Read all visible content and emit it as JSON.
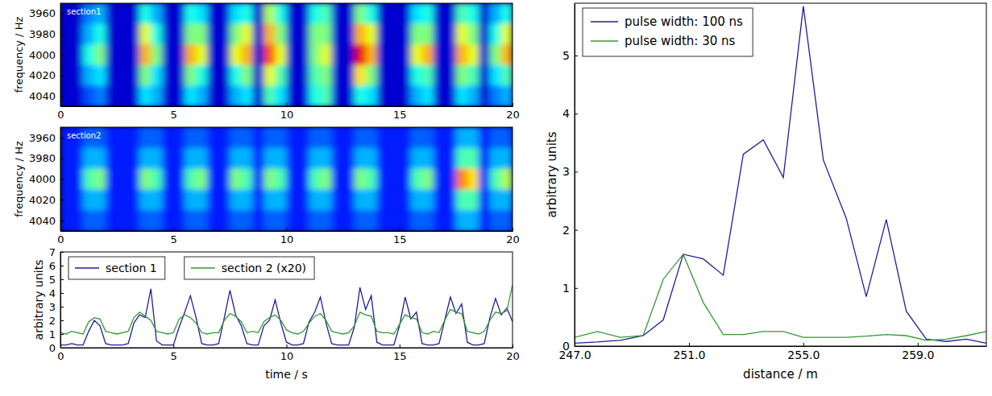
{
  "chart_data": [
    {
      "type": "heatmap",
      "title": "section1",
      "y_label": "frequency / Hz",
      "xlim": [
        0,
        20
      ],
      "xticks": [
        0,
        5,
        10,
        15,
        20
      ],
      "ylim": [
        4050,
        3950
      ],
      "yticks": [
        3960,
        3980,
        4000,
        4020,
        4040
      ],
      "x_bins": [
        0,
        0.5,
        1,
        1.5,
        2,
        2.5,
        3,
        3.5,
        4,
        4.5,
        5,
        5.5,
        6,
        6.5,
        7,
        7.5,
        8,
        8.5,
        9,
        9.5,
        10,
        10.5,
        11,
        11.5,
        12,
        12.5,
        13,
        13.5,
        14,
        14.5,
        15,
        15.5,
        16,
        16.5,
        17,
        17.5,
        18,
        18.5,
        19,
        19.5,
        20
      ],
      "y_bins": [
        3950,
        3970,
        3990,
        4010,
        4030,
        4050
      ],
      "zlim": [
        0,
        10
      ],
      "cells": [
        [
          0.8,
          0.8,
          2.5,
          3,
          0.8,
          0.8,
          0.8,
          4,
          3,
          0.8,
          0.8,
          4,
          3.5,
          0.8,
          0.8,
          3.5,
          4,
          0.8,
          5.5,
          4,
          0.8,
          0.8,
          4,
          4.5,
          0.8,
          0.8,
          5,
          4,
          0.8,
          0.8,
          0.8,
          3.5,
          4,
          0.8,
          0.8,
          4.5,
          4,
          0.8,
          3,
          4
        ],
        [
          0.8,
          0.8,
          3,
          4,
          0.8,
          0.8,
          0.8,
          6,
          4,
          0.8,
          0.8,
          5,
          5,
          0.8,
          0.8,
          5,
          6,
          0.8,
          7,
          5,
          0.8,
          0.8,
          5,
          5,
          0.8,
          0.8,
          7,
          6,
          0.8,
          0.8,
          0.8,
          5,
          5,
          0.8,
          0.8,
          6,
          5,
          0.8,
          4,
          6
        ],
        [
          0.8,
          0.8,
          4,
          5,
          0.8,
          0.8,
          0.8,
          7,
          5,
          0.8,
          0.8,
          7,
          6,
          0.8,
          0.8,
          6,
          7,
          0.8,
          8,
          6,
          0.8,
          0.8,
          5,
          6,
          0.8,
          0.8,
          9,
          7,
          0.8,
          0.8,
          0.8,
          6,
          7,
          0.8,
          0.8,
          7,
          6,
          0.8,
          5,
          7
        ],
        [
          0.8,
          0.8,
          3,
          3.5,
          0.8,
          0.8,
          0.8,
          5,
          3.5,
          0.8,
          0.8,
          5,
          4,
          0.8,
          0.8,
          4,
          5,
          0.8,
          6,
          4.5,
          0.8,
          0.8,
          4.5,
          5,
          0.8,
          0.8,
          6.5,
          5,
          0.8,
          0.8,
          0.8,
          4,
          4.5,
          0.8,
          0.8,
          5,
          4.5,
          0.8,
          3.5,
          4.5
        ],
        [
          0.8,
          0.8,
          2,
          2.5,
          0.8,
          0.8,
          0.8,
          3.5,
          3,
          0.8,
          0.8,
          3.5,
          3,
          0.8,
          0.8,
          3,
          3.5,
          0.8,
          4.5,
          3.5,
          0.8,
          0.8,
          4,
          4.5,
          0.8,
          0.8,
          4,
          3.5,
          0.8,
          0.8,
          0.8,
          3,
          3.5,
          0.8,
          0.8,
          3.5,
          3,
          0.8,
          2.5,
          3
        ]
      ]
    },
    {
      "type": "heatmap",
      "title": "section2",
      "y_label": "frequency / Hz",
      "xlim": [
        0,
        20
      ],
      "xticks": [
        0,
        5,
        10,
        15,
        20
      ],
      "ylim": [
        4050,
        3950
      ],
      "yticks": [
        3960,
        3980,
        4000,
        4020,
        4040
      ],
      "x_bins": [
        0,
        0.5,
        1,
        1.5,
        2,
        2.5,
        3,
        3.5,
        4,
        4.5,
        5,
        5.5,
        6,
        6.5,
        7,
        7.5,
        8,
        8.5,
        9,
        9.5,
        10,
        10.5,
        11,
        11.5,
        12,
        12.5,
        13,
        13.5,
        14,
        14.5,
        15,
        15.5,
        16,
        16.5,
        17,
        17.5,
        18,
        18.5,
        19,
        19.5,
        20
      ],
      "y_bins": [
        3950,
        3970,
        3990,
        4010,
        4030,
        4050
      ],
      "zlim": [
        0,
        10
      ],
      "cells": [
        [
          1.5,
          1.5,
          2.2,
          2.2,
          1.5,
          1.5,
          1.5,
          2.2,
          2.2,
          1.5,
          1.5,
          2.2,
          2.2,
          1.5,
          1.5,
          2.2,
          2.2,
          1.5,
          2.2,
          2.2,
          1.5,
          1.5,
          2.2,
          2.2,
          1.5,
          1.5,
          2.2,
          2.2,
          1.5,
          1.5,
          1.5,
          2.2,
          2.2,
          1.5,
          1.5,
          3,
          3,
          1.5,
          2.2,
          2.2
        ],
        [
          1.5,
          1.5,
          3,
          3,
          1.5,
          1.5,
          1.5,
          3,
          3,
          1.5,
          1.5,
          3,
          3,
          1.5,
          1.5,
          3,
          3,
          1.5,
          3,
          3,
          1.5,
          1.5,
          3,
          3,
          1.5,
          1.5,
          3,
          3,
          1.5,
          1.5,
          1.5,
          3,
          3,
          1.5,
          1.5,
          4.5,
          4.5,
          1.5,
          3,
          3
        ],
        [
          1.5,
          1.5,
          4.5,
          5,
          1.5,
          1.5,
          1.5,
          5,
          4.5,
          1.5,
          1.5,
          4.5,
          5,
          1.5,
          1.5,
          5,
          4.5,
          1.5,
          5,
          4.5,
          1.5,
          1.5,
          4.5,
          5,
          1.5,
          1.5,
          5,
          4.5,
          1.5,
          1.5,
          1.5,
          4.5,
          5,
          1.5,
          1.5,
          7.5,
          6.5,
          1.5,
          4.5,
          5.5
        ],
        [
          1.5,
          1.5,
          3,
          3,
          1.5,
          1.5,
          1.5,
          3,
          3,
          1.5,
          1.5,
          3,
          3,
          1.5,
          1.5,
          3,
          3,
          1.5,
          3,
          3,
          1.5,
          1.5,
          3,
          3,
          1.5,
          1.5,
          3,
          3,
          1.5,
          1.5,
          1.5,
          3,
          3,
          1.5,
          1.5,
          4.5,
          4.5,
          1.5,
          3,
          3
        ],
        [
          1.5,
          1.5,
          2.2,
          2.2,
          1.5,
          1.5,
          1.5,
          2.2,
          2.2,
          1.5,
          1.5,
          2.2,
          2.2,
          1.5,
          1.5,
          2.2,
          2.2,
          1.5,
          2.2,
          2.2,
          1.5,
          1.5,
          2.2,
          2.2,
          1.5,
          1.5,
          2.2,
          2.2,
          1.5,
          1.5,
          1.5,
          2.2,
          2.2,
          1.5,
          1.5,
          3,
          3,
          1.5,
          2.2,
          2.2
        ]
      ]
    },
    {
      "type": "line",
      "x_label": "time / s",
      "y_label": "arbitrary units",
      "xlim": [
        0,
        20
      ],
      "xticks": [
        0,
        5,
        10,
        15,
        20
      ],
      "ylim": [
        0,
        7
      ],
      "yticks": [
        0,
        1,
        2,
        3,
        4,
        5,
        6,
        7
      ],
      "legend": "upper left",
      "x": [
        0,
        0.25,
        0.5,
        0.75,
        1,
        1.25,
        1.5,
        1.75,
        2,
        2.25,
        2.5,
        2.75,
        3,
        3.25,
        3.5,
        3.75,
        4,
        4.25,
        4.5,
        4.75,
        5,
        5.25,
        5.5,
        5.75,
        6,
        6.25,
        6.5,
        6.75,
        7,
        7.25,
        7.5,
        7.75,
        8,
        8.25,
        8.5,
        8.75,
        9,
        9.25,
        9.5,
        9.75,
        10,
        10.25,
        10.5,
        10.75,
        11,
        11.25,
        11.5,
        11.75,
        12,
        12.25,
        12.5,
        12.75,
        13,
        13.25,
        13.5,
        13.75,
        14,
        14.25,
        14.5,
        14.75,
        15,
        15.25,
        15.5,
        15.75,
        16,
        16.25,
        16.5,
        16.75,
        17,
        17.25,
        17.5,
        17.75,
        18,
        18.25,
        18.5,
        18.75,
        19,
        19.25,
        19.5,
        19.75,
        20
      ],
      "series": [
        {
          "name": "section 1",
          "color": "#1f1f99",
          "values": [
            0.2,
            0.2,
            0.3,
            0.2,
            0.2,
            1.2,
            2.0,
            1.6,
            0.3,
            0.2,
            0.2,
            0.2,
            0.3,
            1.8,
            2.4,
            2.2,
            4.3,
            0.5,
            0.2,
            0.2,
            0.2,
            1.5,
            2.6,
            3.8,
            2.2,
            0.3,
            0.2,
            0.2,
            0.3,
            2.2,
            4.2,
            2.4,
            1.6,
            0.3,
            0.2,
            0.2,
            1.6,
            2.0,
            3.5,
            1.8,
            0.4,
            0.2,
            0.2,
            0.3,
            1.9,
            2.6,
            3.7,
            1.8,
            0.3,
            0.2,
            0.2,
            0.2,
            1.5,
            4.4,
            2.8,
            3.8,
            0.4,
            0.2,
            0.2,
            0.2,
            1.6,
            3.7,
            2.1,
            2.6,
            0.3,
            0.2,
            0.2,
            0.3,
            2.0,
            3.7,
            2.5,
            3.2,
            0.4,
            0.2,
            0.2,
            0.3,
            2.2,
            3.6,
            2.4,
            2.9,
            1.9
          ]
        },
        {
          "name": "section 2 (x20)",
          "color": "#339933",
          "values": [
            1.1,
            1.0,
            1.2,
            1.1,
            1.0,
            1.9,
            2.2,
            2.1,
            1.2,
            1.1,
            1.0,
            1.1,
            1.2,
            2.2,
            2.6,
            2.3,
            2.0,
            1.2,
            1.1,
            1.0,
            1.1,
            2.1,
            2.4,
            2.2,
            1.8,
            1.1,
            1.0,
            1.1,
            1.1,
            2.0,
            2.5,
            2.3,
            1.9,
            1.1,
            1.2,
            1.1,
            1.9,
            2.2,
            2.4,
            2.0,
            1.3,
            1.1,
            1.0,
            1.2,
            1.8,
            2.3,
            2.5,
            2.0,
            1.2,
            1.1,
            1.0,
            1.1,
            1.6,
            2.6,
            2.4,
            2.3,
            1.2,
            1.1,
            1.1,
            1.0,
            1.7,
            2.4,
            2.2,
            2.1,
            1.1,
            1.0,
            1.2,
            1.1,
            2.0,
            2.8,
            2.6,
            2.5,
            1.2,
            1.1,
            1.0,
            1.2,
            2.0,
            2.6,
            2.5,
            2.7,
            4.6
          ]
        }
      ]
    },
    {
      "type": "line",
      "x_label": "distance / m",
      "y_label": "arbitrary units",
      "xlim": [
        247,
        261.4
      ],
      "xticks": [
        {
          "value": 247,
          "label": "247.0"
        },
        {
          "value": 251,
          "label": "251.0"
        },
        {
          "value": 255,
          "label": "255.0"
        },
        {
          "value": 259,
          "label": "259.0"
        }
      ],
      "ylim": [
        0,
        5.9
      ],
      "yticks": [
        0,
        1,
        2,
        3,
        4,
        5
      ],
      "legend": "upper left",
      "x": [
        247,
        247.8,
        248.6,
        249.4,
        250.1,
        250.8,
        251.5,
        252.2,
        252.9,
        253.6,
        254.3,
        255,
        255.7,
        256.5,
        257.2,
        257.9,
        258.6,
        259.3,
        260,
        260.7,
        261.4
      ],
      "series": [
        {
          "name": "pulse width: 100 ns",
          "color": "#1f1f99",
          "values": [
            0.05,
            0.07,
            0.1,
            0.18,
            0.45,
            1.58,
            1.5,
            1.22,
            3.3,
            3.55,
            2.9,
            5.85,
            3.2,
            2.2,
            0.85,
            2.18,
            0.6,
            0.12,
            0.08,
            0.12,
            0.05
          ]
        },
        {
          "name": "pulse width: 30 ns",
          "color": "#339933",
          "values": [
            0.15,
            0.25,
            0.15,
            0.18,
            1.15,
            1.58,
            0.75,
            0.2,
            0.2,
            0.25,
            0.25,
            0.15,
            0.15,
            0.15,
            0.17,
            0.2,
            0.18,
            0.1,
            0.12,
            0.18,
            0.25
          ]
        }
      ]
    }
  ]
}
